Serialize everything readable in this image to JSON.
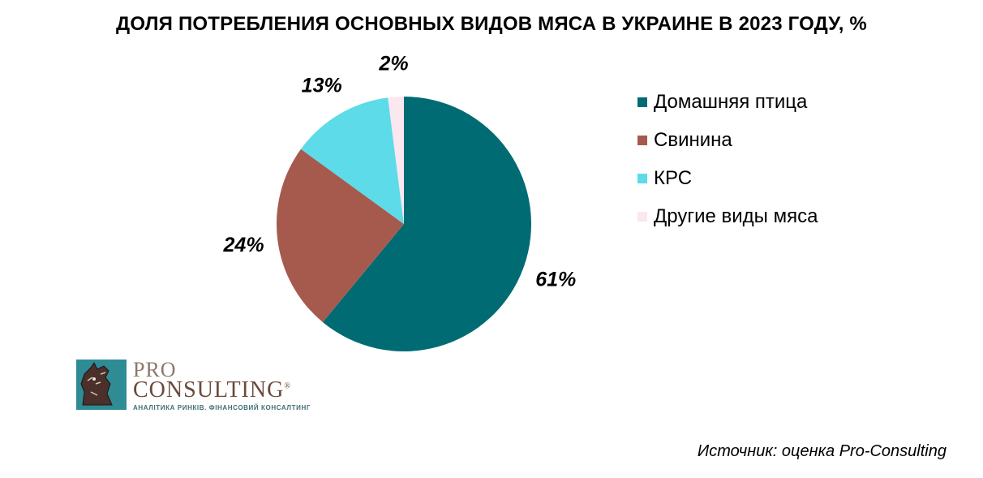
{
  "chart_data": {
    "type": "pie",
    "title": "ДОЛЯ ПОТРЕБЛЕНИЯ ОСНОВНЫХ ВИДОВ МЯСА В УКРАИНЕ В 2023 ГОДУ, %",
    "categories": [
      "Домашняя птица",
      "Свинина",
      "КРС",
      "Другие виды мяса"
    ],
    "values": [
      61,
      24,
      13,
      2
    ],
    "data_labels": [
      "61%",
      "24%",
      "13%",
      "2%"
    ],
    "colors": [
      "#006b73",
      "#a65a4e",
      "#5ddbe8",
      "#fbe7f0"
    ],
    "legend_position": "right"
  },
  "logo": {
    "pro": "PRO",
    "consulting": "CONSULTING",
    "registered": "®",
    "tagline": "АНАЛІТИКА РИНКІВ. ФІНАНСОВИЙ КОНСАЛТИНГ"
  },
  "source": "Источник: оценка Pro-Consulting"
}
